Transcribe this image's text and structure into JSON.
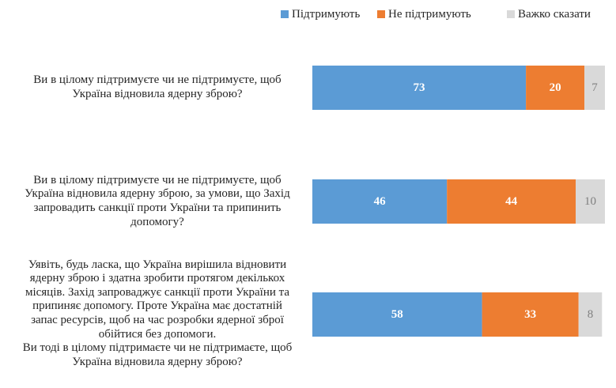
{
  "chart_data": {
    "type": "bar",
    "orientation": "horizontal",
    "stacked": true,
    "categories": [
      "Ви в цілому підтримуєте чи не підтримуєте, щоб Україна відновила ядерну зброю?",
      "Ви в цілому підтримуєте чи не підтримуєте, щоб Україна відновила ядерну зброю, за умови, що Захід запровадить санкції проти України та припинить допомогу?",
      "Уявіть, будь ласка, що Україна вирішила відновити ядерну зброю і здатна зробити протягом декількох місяців. Захід запроваджує санкції проти України та припиняє допомогу. Проте Україна має достатній запас ресурсів, щоб на час розробки ядерної зброї обійтися без допомоги. Ви тоді в цілому підтримаєте чи не підтримаєте, щоб Україна відновила ядерну зброю?"
    ],
    "category_lines": [
      [
        "Ви в цілому підтримуєте чи не підтримуєте, щоб",
        "Україна відновила ядерну зброю?"
      ],
      [
        "Ви в цілому підтримуєте чи не підтримуєте, щоб",
        "Україна відновила ядерну зброю, за умови, що Захід",
        "запровадить санкції проти України та припинить",
        "допомогу?"
      ],
      [
        "Уявіть, будь ласка, що Україна вирішила відновити",
        "ядерну зброю і здатна зробити протягом декількох",
        "місяців. Захід запроваджує санкції проти України та",
        "припиняє допомогу. Проте Україна має достатній",
        "запас ресурсів, щоб на час розробки ядерної зброї",
        "обійтися без допомоги.",
        "Ви тоді в цілому підтримаєте чи не підтримаєте, щоб",
        "Україна відновила ядерну зброю?"
      ]
    ],
    "series": [
      {
        "name": "Підтримують",
        "values": [
          73,
          46,
          58
        ],
        "color": "#5B9BD5",
        "label_color": "#ffffff"
      },
      {
        "name": "Не підтримують",
        "values": [
          20,
          44,
          33
        ],
        "color": "#ED7D31",
        "label_color": "#ffffff"
      },
      {
        "name": "Важко сказати",
        "values": [
          7,
          10,
          8
        ],
        "color": "#D9D9D9",
        "label_color": "#7f7f7f"
      }
    ],
    "xlim": [
      0,
      100
    ],
    "grid": false,
    "legend_position": "top-right",
    "data_labels": true
  }
}
